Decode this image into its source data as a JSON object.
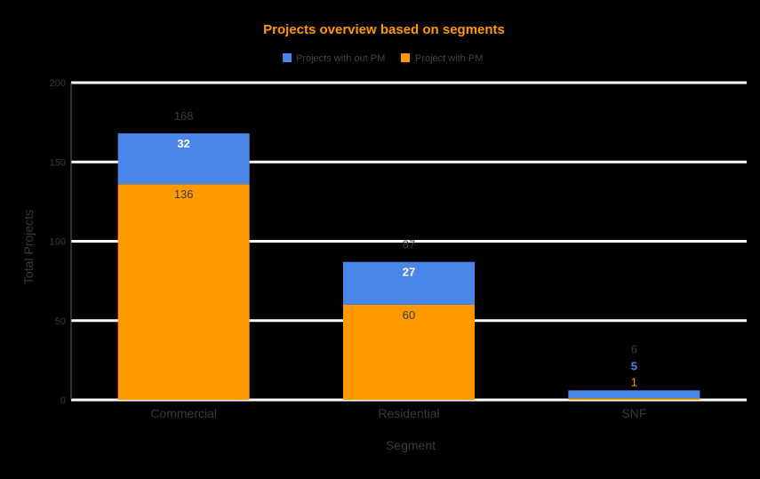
{
  "chart_data": {
    "type": "bar",
    "stacked": true,
    "title": "Projects overview based on segments",
    "xlabel": "Segment",
    "ylabel": "Total Projects",
    "categories": [
      "Commercial",
      "Residential",
      "SNF"
    ],
    "series": [
      {
        "name": "Projects with out PM",
        "values": [
          32,
          27,
          5
        ],
        "color": "#4a86e8"
      },
      {
        "name": "Project with PM",
        "values": [
          136,
          60,
          1
        ],
        "color": "#ff9900"
      }
    ],
    "totals": [
      168,
      87,
      6
    ],
    "ylim": [
      0,
      200
    ],
    "yticks": [
      0,
      50,
      100,
      150,
      200
    ],
    "grid": true,
    "legend_position": "top",
    "colors": {
      "title": "#ff9900",
      "background": "#000000",
      "gridline": "#ffffff"
    }
  }
}
